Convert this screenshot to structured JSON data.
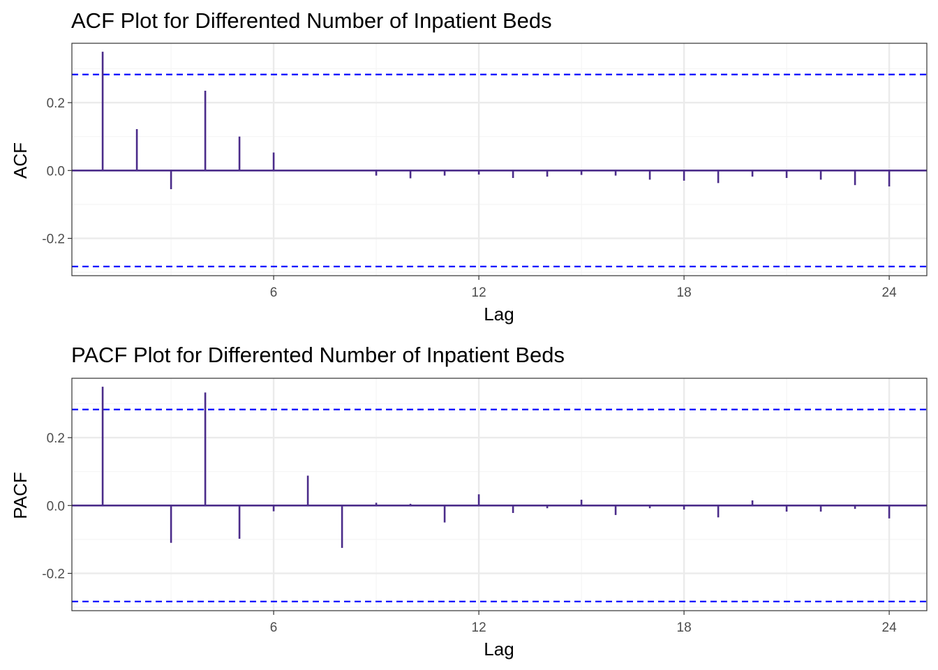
{
  "colors": {
    "bar": "#4B2C8A",
    "bound": "#0000FF",
    "grid_major": "#EBEBEB",
    "grid_minor": "#F5F5F5",
    "panel_border": "#333333",
    "tick_text": "#4D4D4D"
  },
  "chart_data": [
    {
      "type": "bar",
      "title": "ACF Plot for Differented Number of Inpatient Beds",
      "xlabel": "Lag",
      "ylabel": "ACF",
      "x_ticks": [
        6,
        12,
        18,
        24
      ],
      "y_ticks": [
        -0.2,
        0.0,
        0.2
      ],
      "y_tick_labels": [
        "-0.2",
        "0.0",
        "0.2"
      ],
      "xlim": [
        0.1,
        25.1
      ],
      "ylim": [
        -0.31,
        0.375
      ],
      "grid": true,
      "confidence_bound": 0.283,
      "lags": [
        1,
        2,
        3,
        4,
        5,
        6,
        7,
        8,
        9,
        10,
        11,
        12,
        13,
        14,
        15,
        16,
        17,
        18,
        19,
        20,
        21,
        22,
        23,
        24
      ],
      "values": [
        0.35,
        0.122,
        -0.055,
        0.235,
        0.1,
        0.053,
        0.0,
        0.0,
        -0.015,
        -0.023,
        -0.015,
        -0.012,
        -0.022,
        -0.018,
        -0.013,
        -0.015,
        -0.027,
        -0.03,
        -0.037,
        -0.018,
        -0.022,
        -0.027,
        -0.043,
        -0.047
      ]
    },
    {
      "type": "bar",
      "title": "PACF Plot for Differented Number of Inpatient Beds",
      "xlabel": "Lag",
      "ylabel": "PACF",
      "x_ticks": [
        6,
        12,
        18,
        24
      ],
      "y_ticks": [
        -0.2,
        0.0,
        0.2
      ],
      "y_tick_labels": [
        "-0.2",
        "0.0",
        "0.2"
      ],
      "xlim": [
        0.1,
        25.1
      ],
      "ylim": [
        -0.31,
        0.375
      ],
      "grid": true,
      "confidence_bound": 0.283,
      "lags": [
        1,
        2,
        3,
        4,
        5,
        6,
        7,
        8,
        9,
        10,
        11,
        12,
        13,
        14,
        15,
        16,
        17,
        18,
        19,
        20,
        21,
        22,
        23,
        24
      ],
      "values": [
        0.35,
        0.0,
        -0.11,
        0.333,
        -0.098,
        -0.017,
        0.088,
        -0.125,
        0.008,
        0.005,
        -0.05,
        0.033,
        -0.022,
        -0.008,
        0.017,
        -0.028,
        -0.008,
        -0.012,
        -0.035,
        0.015,
        -0.018,
        -0.018,
        -0.01,
        -0.038
      ]
    }
  ]
}
